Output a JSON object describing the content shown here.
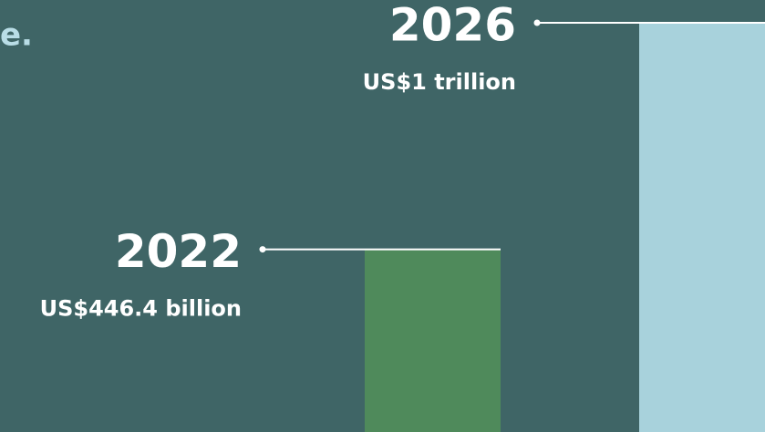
{
  "chart_data": {
    "type": "bar",
    "intro_fragment": "e.",
    "categories": [
      "2022",
      "2026"
    ],
    "values": [
      446.4,
      1000
    ],
    "value_labels": [
      "US$446.4 billion",
      "US$1 trillion"
    ],
    "colors": [
      "#4f8a5b",
      "#a8d2dc"
    ],
    "ylim": [
      0,
      1000
    ]
  }
}
